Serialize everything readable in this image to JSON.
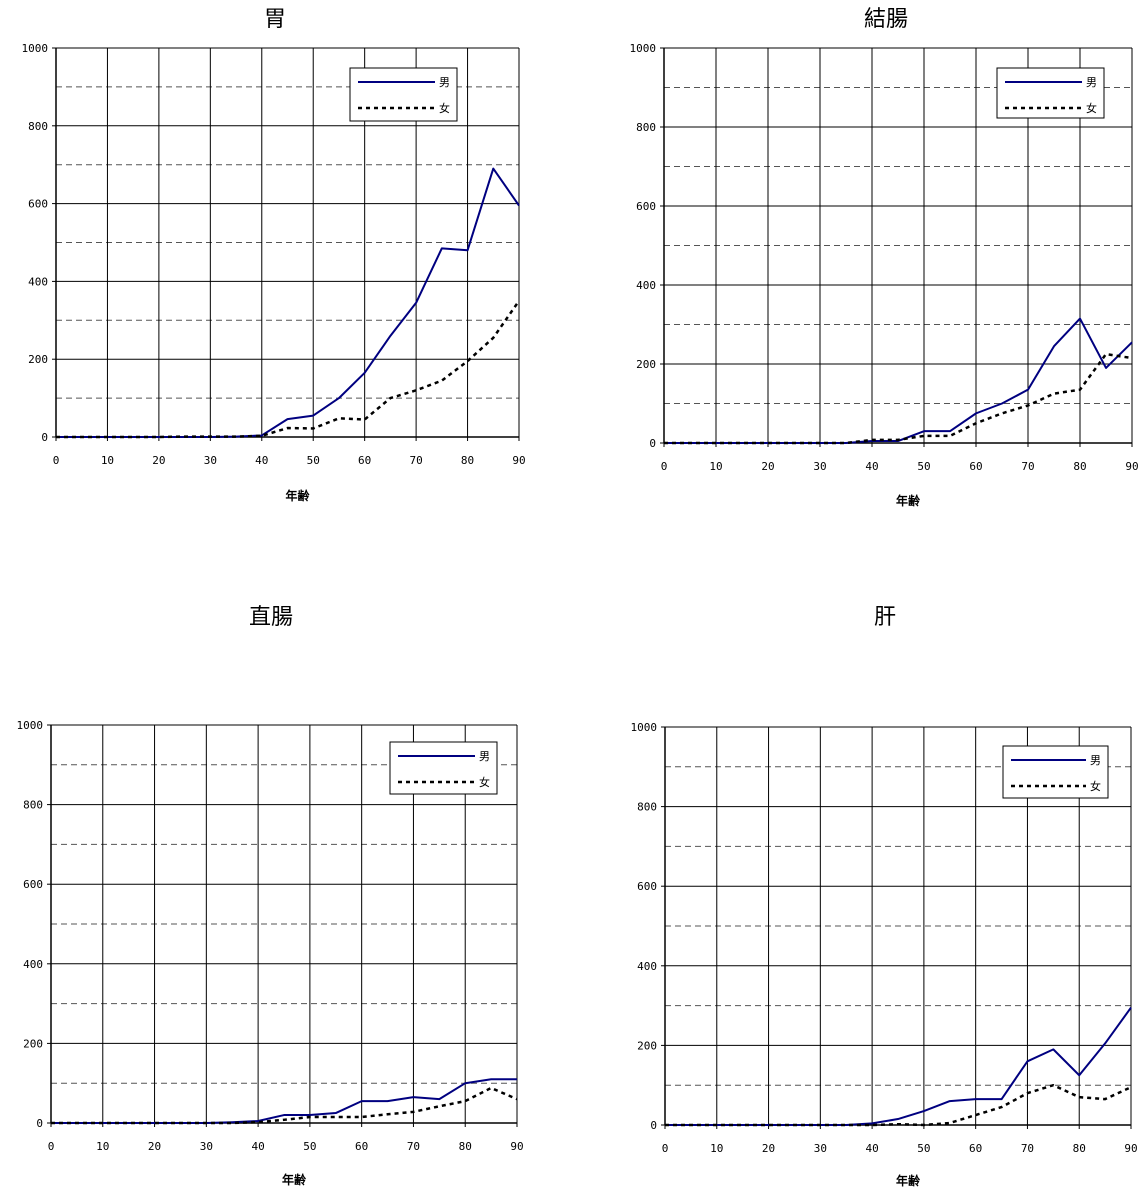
{
  "chart_data": [
    {
      "type": "line",
      "title": "胃",
      "xlabel": "年齢",
      "ylabel": "",
      "xlim": [
        0,
        90
      ],
      "ylim": [
        0,
        1000
      ],
      "xticks": [
        "0",
        "10",
        "20",
        "30",
        "40",
        "50",
        "60",
        "70",
        "80",
        "90"
      ],
      "yticks": [
        "0",
        "200",
        "400",
        "600",
        "800",
        "1000"
      ],
      "grid": true,
      "legend": "top-right",
      "x": [
        0,
        5,
        10,
        15,
        20,
        25,
        30,
        35,
        40,
        45,
        50,
        55,
        60,
        65,
        70,
        75,
        80,
        85,
        90
      ],
      "series": [
        {
          "name": "男",
          "color": "#000080",
          "style": "solid",
          "values": [
            0,
            0,
            0,
            0,
            0,
            0,
            0,
            1,
            4,
            46,
            55,
            100,
            165,
            260,
            345,
            485,
            480,
            690,
            595
          ]
        },
        {
          "name": "女",
          "color": "#000000",
          "style": "dotted",
          "values": [
            0,
            0,
            0,
            0,
            0,
            1,
            1,
            1,
            3,
            23,
            22,
            48,
            45,
            100,
            120,
            145,
            195,
            255,
            350
          ]
        }
      ]
    },
    {
      "type": "line",
      "title": "結腸",
      "xlabel": "年齢",
      "ylabel": "",
      "xlim": [
        0,
        90
      ],
      "ylim": [
        0,
        1000
      ],
      "xticks": [
        "0",
        "10",
        "20",
        "30",
        "40",
        "50",
        "60",
        "70",
        "80",
        "90"
      ],
      "yticks": [
        "0",
        "200",
        "400",
        "600",
        "800",
        "1000"
      ],
      "grid": true,
      "legend": "top-right",
      "x": [
        0,
        5,
        10,
        15,
        20,
        25,
        30,
        35,
        40,
        45,
        50,
        55,
        60,
        65,
        70,
        75,
        80,
        85,
        90
      ],
      "series": [
        {
          "name": "男",
          "color": "#000080",
          "style": "solid",
          "values": [
            0,
            0,
            0,
            0,
            0,
            0,
            0,
            0,
            5,
            5,
            30,
            30,
            75,
            100,
            135,
            245,
            315,
            190,
            255
          ]
        },
        {
          "name": "女",
          "color": "#000000",
          "style": "dotted",
          "values": [
            0,
            0,
            0,
            0,
            0,
            0,
            0,
            0,
            8,
            8,
            18,
            18,
            50,
            75,
            95,
            125,
            135,
            225,
            215
          ]
        }
      ]
    },
    {
      "type": "line",
      "title": "直腸",
      "xlabel": "年齢",
      "ylabel": "",
      "xlim": [
        0,
        90
      ],
      "ylim": [
        0,
        1000
      ],
      "xticks": [
        "0",
        "10",
        "20",
        "30",
        "40",
        "50",
        "60",
        "70",
        "80",
        "90"
      ],
      "yticks": [
        "0",
        "200",
        "400",
        "600",
        "800",
        "1000"
      ],
      "grid": true,
      "legend": "top-right",
      "x": [
        0,
        5,
        10,
        15,
        20,
        25,
        30,
        35,
        40,
        45,
        50,
        55,
        60,
        65,
        70,
        75,
        80,
        85,
        90
      ],
      "series": [
        {
          "name": "男",
          "color": "#000080",
          "style": "solid",
          "values": [
            0,
            0,
            0,
            0,
            0,
            0,
            0,
            2,
            5,
            20,
            20,
            25,
            55,
            55,
            65,
            60,
            100,
            110,
            110
          ]
        },
        {
          "name": "女",
          "color": "#000000",
          "style": "dotted",
          "values": [
            0,
            0,
            0,
            0,
            0,
            0,
            0,
            0,
            2,
            8,
            15,
            15,
            15,
            22,
            28,
            42,
            55,
            88,
            60
          ]
        }
      ]
    },
    {
      "type": "line",
      "title": "肝",
      "xlabel": "年齢",
      "ylabel": "",
      "xlim": [
        0,
        90
      ],
      "ylim": [
        0,
        1000
      ],
      "xticks": [
        "0",
        "10",
        "20",
        "30",
        "40",
        "50",
        "60",
        "70",
        "80",
        "90"
      ],
      "yticks": [
        "0",
        "200",
        "400",
        "600",
        "800",
        "1000"
      ],
      "grid": true,
      "legend": "top-right",
      "x": [
        0,
        5,
        10,
        15,
        20,
        25,
        30,
        35,
        40,
        45,
        50,
        55,
        60,
        65,
        70,
        75,
        80,
        85,
        90
      ],
      "series": [
        {
          "name": "男",
          "color": "#000080",
          "style": "solid",
          "values": [
            0,
            0,
            0,
            0,
            0,
            0,
            0,
            0,
            4,
            15,
            35,
            60,
            65,
            65,
            160,
            190,
            125,
            205,
            295
          ]
        },
        {
          "name": "女",
          "color": "#000000",
          "style": "dotted",
          "values": [
            0,
            0,
            0,
            0,
            0,
            0,
            0,
            0,
            0,
            2,
            0,
            5,
            25,
            45,
            80,
            100,
            70,
            65,
            95
          ]
        }
      ]
    }
  ]
}
